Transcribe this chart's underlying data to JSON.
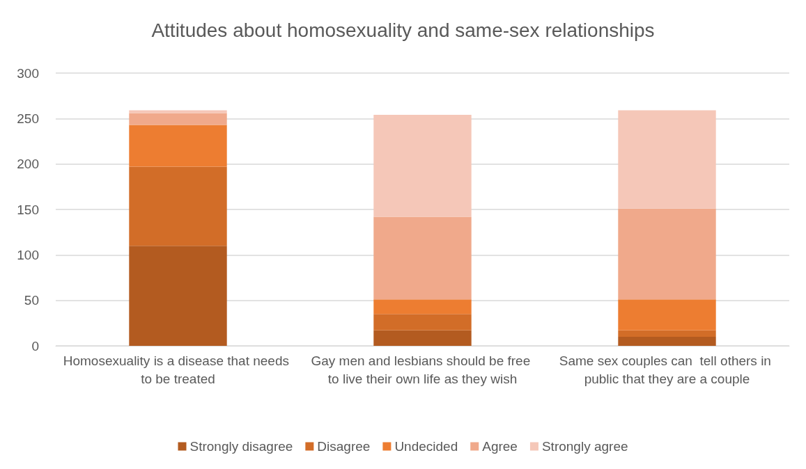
{
  "chart_data": {
    "type": "bar",
    "stacked": true,
    "title": "Attitudes about homosexuality and same-sex relationships",
    "categories": [
      "Homosexuality is a disease that needs to be treated",
      "Gay men and lesbians should be free to live their own life as they wish",
      "Same sex couples can  tell others in public that they are a couple"
    ],
    "series": [
      {
        "name": "Strongly disagree",
        "color": "#b35b20",
        "values": [
          110,
          17,
          10
        ]
      },
      {
        "name": "Disagree",
        "color": "#d26d28",
        "values": [
          87,
          18,
          7
        ]
      },
      {
        "name": "Undecided",
        "color": "#ed7d31",
        "values": [
          46,
          16,
          34
        ]
      },
      {
        "name": "Agree",
        "color": "#f0a98b",
        "values": [
          13,
          91,
          100
        ]
      },
      {
        "name": "Strongly agree",
        "color": "#f5c7b8",
        "values": [
          3,
          112,
          108
        ]
      }
    ],
    "ylim": [
      0,
      300
    ],
    "yticks": [
      0,
      50,
      100,
      150,
      200,
      250,
      300
    ],
    "grid": "y",
    "legend": "bottom"
  }
}
